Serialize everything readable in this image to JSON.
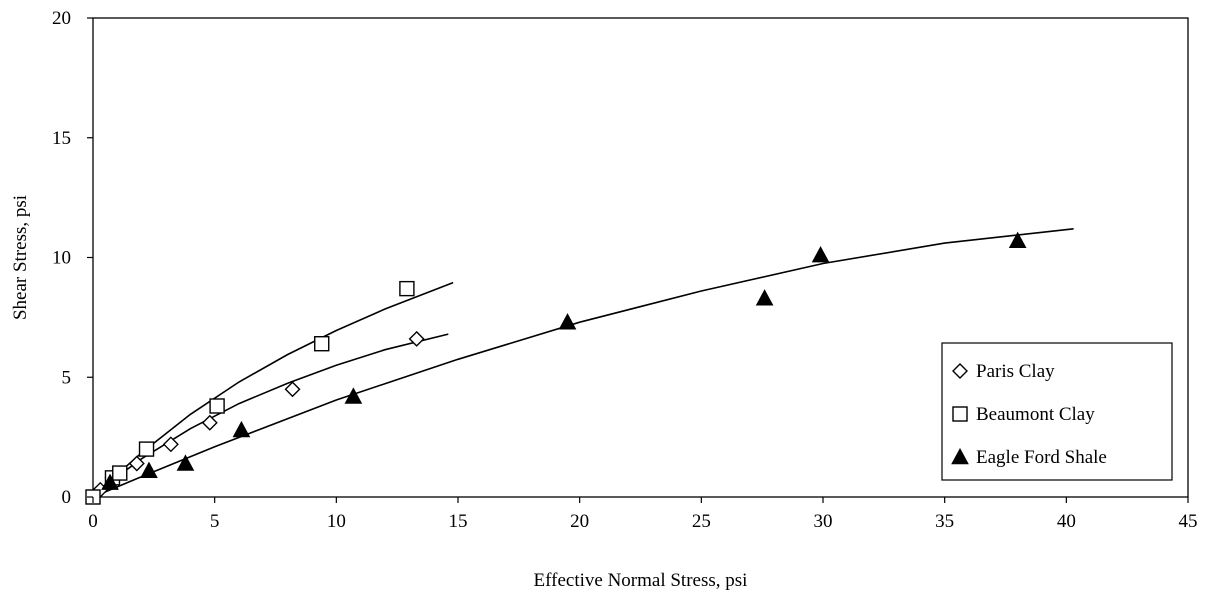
{
  "chart_data": {
    "type": "scatter",
    "title": "",
    "xlabel": "Effective Normal Stress, psi",
    "ylabel": "Shear Stress, psi",
    "xlim": [
      0,
      45
    ],
    "ylim": [
      0,
      20
    ],
    "x_ticks": [
      0,
      5,
      10,
      15,
      20,
      25,
      30,
      35,
      40,
      45
    ],
    "y_ticks": [
      0,
      5,
      10,
      15,
      20
    ],
    "grid": false,
    "legend_position": "bottom-right",
    "series": [
      {
        "name": "Paris Clay",
        "marker": "open-diamond",
        "color": "#000000",
        "points": [
          {
            "x": 0.1,
            "y": 0.1
          },
          {
            "x": 0.3,
            "y": 0.3
          },
          {
            "x": 0.8,
            "y": 0.8
          },
          {
            "x": 1.8,
            "y": 1.4
          },
          {
            "x": 3.2,
            "y": 2.2
          },
          {
            "x": 4.8,
            "y": 3.1
          },
          {
            "x": 8.2,
            "y": 4.5
          },
          {
            "x": 13.3,
            "y": 6.6
          }
        ],
        "trendline": [
          {
            "x": 0,
            "y": 0
          },
          {
            "x": 1,
            "y": 0.85
          },
          {
            "x": 2,
            "y": 1.6
          },
          {
            "x": 4,
            "y": 2.85
          },
          {
            "x": 6,
            "y": 3.9
          },
          {
            "x": 8,
            "y": 4.75
          },
          {
            "x": 10,
            "y": 5.5
          },
          {
            "x": 12,
            "y": 6.15
          },
          {
            "x": 14.6,
            "y": 6.8
          }
        ]
      },
      {
        "name": "Beaumont Clay",
        "marker": "open-square",
        "color": "#000000",
        "points": [
          {
            "x": 0,
            "y": 0
          },
          {
            "x": 0.8,
            "y": 0.8
          },
          {
            "x": 1.1,
            "y": 1.0
          },
          {
            "x": 2.2,
            "y": 2.0
          },
          {
            "x": 5.1,
            "y": 3.8
          },
          {
            "x": 9.4,
            "y": 6.4
          },
          {
            "x": 12.9,
            "y": 8.7
          }
        ],
        "trendline": [
          {
            "x": 0,
            "y": 0
          },
          {
            "x": 1,
            "y": 0.95
          },
          {
            "x": 2,
            "y": 1.85
          },
          {
            "x": 4,
            "y": 3.45
          },
          {
            "x": 6,
            "y": 4.8
          },
          {
            "x": 8,
            "y": 5.95
          },
          {
            "x": 10,
            "y": 6.95
          },
          {
            "x": 12,
            "y": 7.85
          },
          {
            "x": 14.8,
            "y": 8.95
          }
        ]
      },
      {
        "name": "Eagle Ford Shale",
        "marker": "filled-triangle",
        "color": "#000000",
        "points": [
          {
            "x": 0.7,
            "y": 0.6
          },
          {
            "x": 2.3,
            "y": 1.1
          },
          {
            "x": 3.8,
            "y": 1.4
          },
          {
            "x": 6.1,
            "y": 2.8
          },
          {
            "x": 10.7,
            "y": 4.2
          },
          {
            "x": 19.5,
            "y": 7.3
          },
          {
            "x": 27.6,
            "y": 8.3
          },
          {
            "x": 29.9,
            "y": 10.1
          },
          {
            "x": 38.0,
            "y": 10.7
          }
        ],
        "trendline": [
          {
            "x": 0,
            "y": 0
          },
          {
            "x": 2,
            "y": 0.85
          },
          {
            "x": 5,
            "y": 2.1
          },
          {
            "x": 10,
            "y": 4.05
          },
          {
            "x": 15,
            "y": 5.75
          },
          {
            "x": 20,
            "y": 7.3
          },
          {
            "x": 25,
            "y": 8.6
          },
          {
            "x": 30,
            "y": 9.75
          },
          {
            "x": 35,
            "y": 10.6
          },
          {
            "x": 40.3,
            "y": 11.2
          }
        ]
      }
    ]
  }
}
